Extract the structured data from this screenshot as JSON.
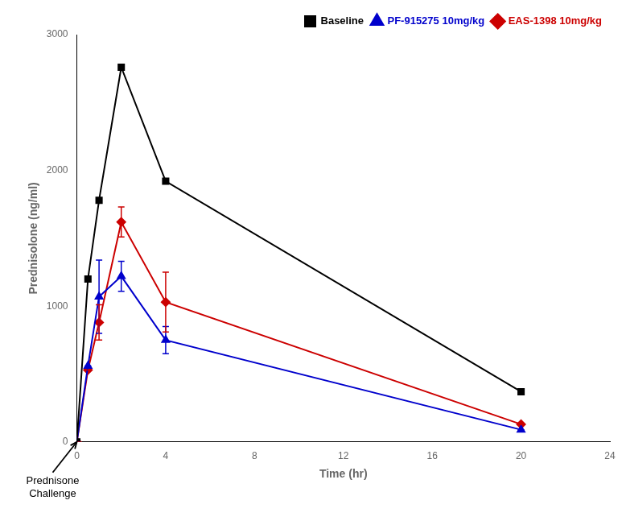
{
  "chart_data": {
    "type": "line",
    "x": [
      0,
      0.5,
      1,
      2,
      4,
      20
    ],
    "series": [
      {
        "name": "Baseline",
        "color": "#000000",
        "marker": "square",
        "values": [
          0,
          1200,
          1780,
          2760,
          1920,
          370
        ]
      },
      {
        "name": "PF-915275 10mg/kg",
        "color": "#0000cc",
        "marker": "triangle",
        "values": [
          0,
          560,
          1070,
          1220,
          750,
          90
        ],
        "errors": [
          0,
          0,
          270,
          110,
          100,
          0
        ]
      },
      {
        "name": "EAS-1398 10mg/kg",
        "color": "#cc0000",
        "marker": "diamond",
        "values": [
          0,
          530,
          880,
          1620,
          1030,
          130
        ],
        "errors": [
          0,
          0,
          130,
          110,
          220,
          0
        ]
      }
    ],
    "xlabel": "Time (hr)",
    "ylabel": "Prednisolone (ng/ml)",
    "xlim": [
      0,
      24
    ],
    "xticks": [
      0,
      4,
      8,
      12,
      16,
      20,
      24
    ],
    "ylim": [
      0,
      3000
    ],
    "yticks": [
      0,
      1000,
      2000,
      3000
    ],
    "grid": false,
    "legend": "upper right",
    "annotations": [
      {
        "text": "Prednisone\nChallenge",
        "x": 0
      }
    ]
  }
}
